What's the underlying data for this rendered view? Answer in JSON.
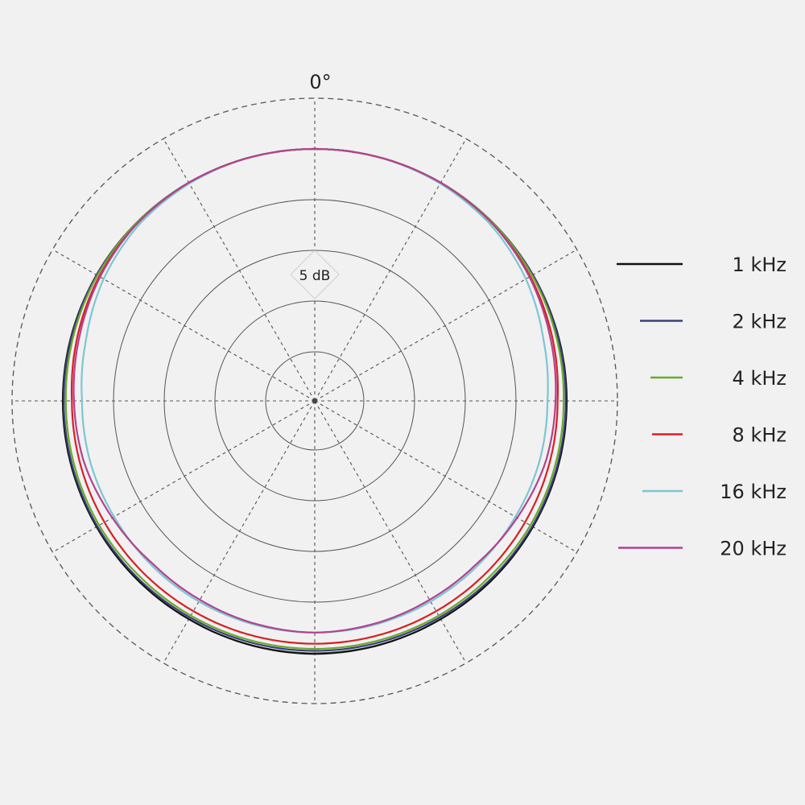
{
  "chart_data": {
    "type": "polar-line",
    "angle_label": "0°",
    "ring_label": "5 dB",
    "ring_step_db": 5,
    "rlim_db": [
      -25,
      5
    ],
    "angle_step_deg": 30,
    "grid": true,
    "legend_placement": "right",
    "angles_deg": [
      0,
      15,
      30,
      45,
      60,
      75,
      90,
      105,
      120,
      135,
      150,
      165,
      180
    ],
    "series": [
      {
        "name": "1 kHz",
        "color": "#111111",
        "values_db": [
          0,
          0,
          0,
          0,
          0,
          0,
          0,
          0,
          0,
          0,
          0,
          0.05,
          0.1
        ]
      },
      {
        "name": "2 kHz",
        "color": "#3a3f7a",
        "values_db": [
          0,
          0,
          0,
          0,
          0,
          -0.05,
          -0.1,
          -0.1,
          -0.1,
          -0.15,
          -0.2,
          -0.2,
          -0.2
        ]
      },
      {
        "name": "4 kHz",
        "color": "#6aaa2a",
        "values_db": [
          0,
          0,
          0,
          0,
          -0.1,
          -0.2,
          -0.3,
          -0.3,
          -0.3,
          -0.4,
          -0.4,
          -0.4,
          -0.4
        ]
      },
      {
        "name": "8 kHz",
        "color": "#d81f26",
        "values_db": [
          0,
          0,
          0,
          -0.1,
          -0.3,
          -0.6,
          -0.9,
          -0.9,
          -0.9,
          -0.9,
          -0.9,
          -0.9,
          -0.9
        ]
      },
      {
        "name": "16 kHz",
        "color": "#7cc6d2",
        "values_db": [
          0,
          0,
          -0.1,
          -0.3,
          -0.8,
          -1.5,
          -1.9,
          -1.9,
          -2.0,
          -2.0,
          -2.0,
          -2.0,
          -2.0
        ]
      },
      {
        "name": "20 kHz",
        "color": "#b4418e",
        "values_db": [
          0,
          0,
          0,
          -0.1,
          -0.4,
          -0.8,
          -1.1,
          -1.3,
          -1.8,
          -2.2,
          -2.2,
          -2.1,
          -2.0
        ]
      }
    ]
  }
}
